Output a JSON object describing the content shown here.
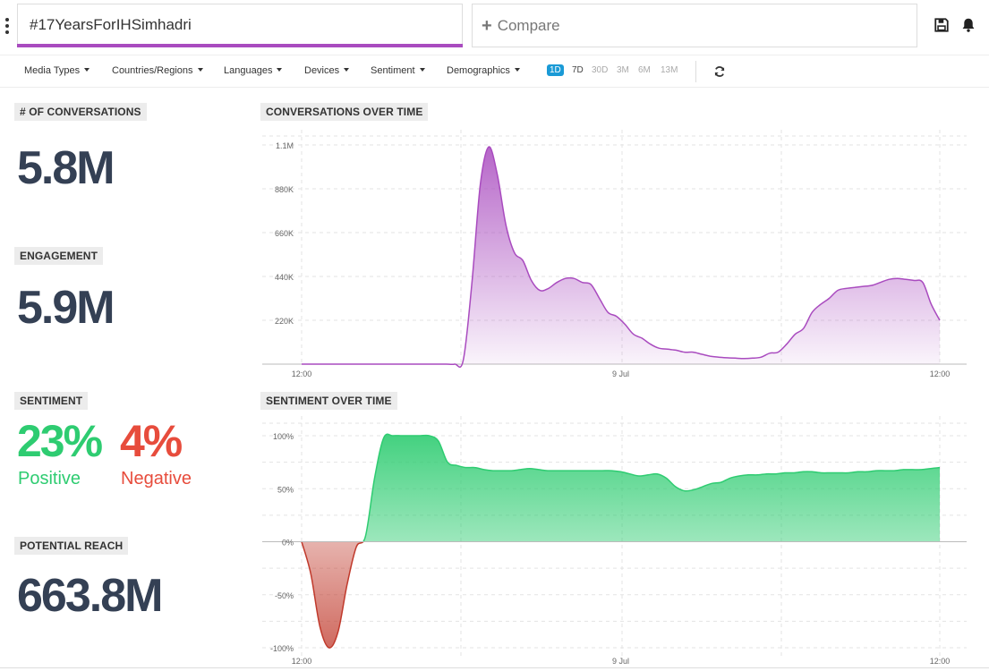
{
  "search": {
    "value": "#17YearsForIHSimhadri",
    "compare_placeholder": "Compare"
  },
  "filters": [
    "Media Types",
    "Countries/Regions",
    "Languages",
    "Devices",
    "Sentiment",
    "Demographics"
  ],
  "ranges": [
    "1D",
    "7D",
    "30D",
    "3M",
    "6M",
    "13M"
  ],
  "active_range": "1D",
  "accent_color": "#a94bbf",
  "metrics": {
    "conversations": {
      "label": "# OF CONVERSATIONS",
      "value": "5.8M"
    },
    "engagement": {
      "label": "ENGAGEMENT",
      "value": "5.9M"
    },
    "sentiment": {
      "label": "SENTIMENT",
      "positive_value": "23%",
      "positive_label": "Positive",
      "negative_value": "4%",
      "negative_label": "Negative"
    },
    "reach": {
      "label": "POTENTIAL REACH",
      "value": "663.8M"
    }
  },
  "chart_data": [
    {
      "type": "area",
      "title": "CONVERSATIONS OVER TIME",
      "x_labels": [
        "12:00",
        "9 Jul",
        "12:00"
      ],
      "y_ticks": [
        "1.1M",
        "880K",
        "660K",
        "440K",
        "220K"
      ],
      "ylim": [
        0,
        1100000
      ],
      "color": "#a94bbf",
      "series": [
        {
          "values": [
            0,
            0,
            0,
            0,
            0,
            0,
            0,
            0,
            0,
            0,
            0,
            0,
            0,
            0,
            0,
            0,
            0,
            0,
            0,
            20000,
            400000,
            900000,
            1090000,
            950000,
            700000,
            560000,
            520000,
            420000,
            370000,
            380000,
            410000,
            430000,
            430000,
            410000,
            400000,
            330000,
            260000,
            240000,
            200000,
            150000,
            130000,
            100000,
            80000,
            75000,
            70000,
            60000,
            60000,
            50000,
            40000,
            35000,
            32000,
            30000,
            28000,
            30000,
            35000,
            55000,
            60000,
            100000,
            150000,
            180000,
            260000,
            300000,
            330000,
            370000,
            380000,
            385000,
            390000,
            395000,
            410000,
            425000,
            430000,
            425000,
            420000,
            410000,
            300000,
            220000
          ]
        }
      ]
    },
    {
      "type": "area",
      "title": "SENTIMENT OVER TIME",
      "x_labels": [
        "12:00",
        "9 Jul",
        "12:00"
      ],
      "y_ticks": [
        "100%",
        "50%",
        "0%",
        "-50%",
        "-100%"
      ],
      "ylim": [
        -100,
        100
      ],
      "positive_color": "#2ecc71",
      "negative_color": "#c0392b",
      "series": [
        {
          "values": [
            0,
            -30,
            -80,
            -100,
            -85,
            -40,
            -5,
            5,
            60,
            98,
            100,
            100,
            100,
            100,
            100,
            95,
            75,
            72,
            70,
            70,
            68,
            67,
            67,
            67,
            68,
            69,
            68,
            67,
            67,
            67,
            67,
            67,
            67,
            67,
            67,
            66,
            64,
            62,
            63,
            64,
            60,
            52,
            48,
            49,
            52,
            55,
            56,
            60,
            62,
            63,
            63,
            64,
            64,
            65,
            65,
            66,
            66,
            65,
            65,
            65,
            65,
            66,
            66,
            67,
            67,
            67,
            68,
            68,
            68,
            69,
            70
          ]
        }
      ]
    }
  ]
}
